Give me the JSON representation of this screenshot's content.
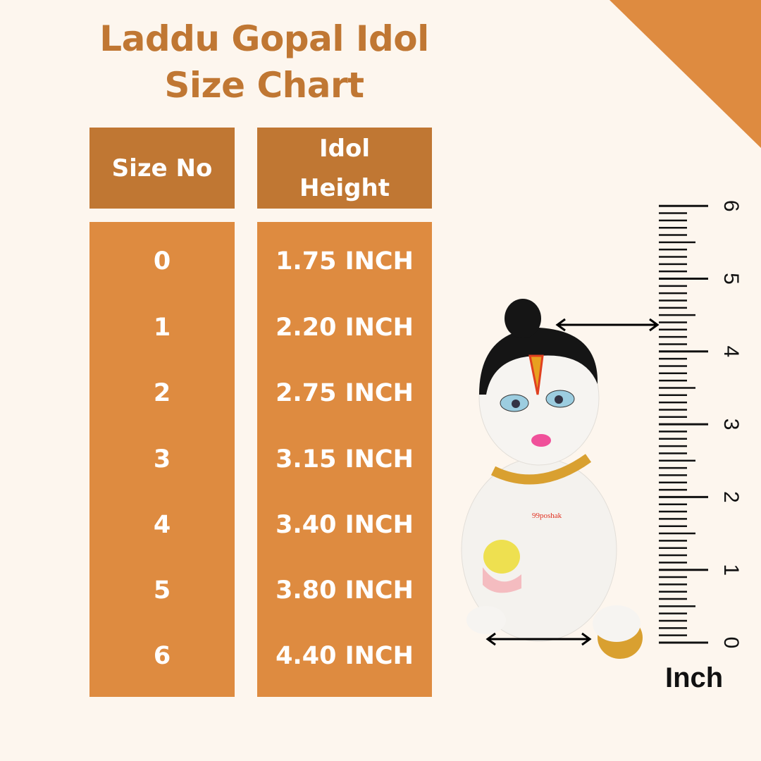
{
  "title": {
    "line1": "Laddu Gopal Idol",
    "line2": "Size Chart"
  },
  "table": {
    "headers": [
      "Size No",
      "Idol",
      "Height"
    ],
    "rows": [
      {
        "size": "0",
        "height": "1.75 INCH"
      },
      {
        "size": "1",
        "height": "2.20 INCH"
      },
      {
        "size": "2",
        "height": "2.75 INCH"
      },
      {
        "size": "3",
        "height": "3.15 INCH"
      },
      {
        "size": "4",
        "height": "3.40 INCH"
      },
      {
        "size": "5",
        "height": "3.80 INCH"
      },
      {
        "size": "6",
        "height": "4.40 INCH"
      }
    ]
  },
  "ruler": {
    "unit": "Inch",
    "labels": [
      "0",
      "1",
      "2",
      "3",
      "4",
      "5",
      "6"
    ],
    "measured_height": 4.4
  },
  "watermark": "99poshak",
  "colors": {
    "background": "#FDF6EE",
    "header": "#C07733",
    "body": "#DE8B40",
    "title": "#C07733"
  }
}
